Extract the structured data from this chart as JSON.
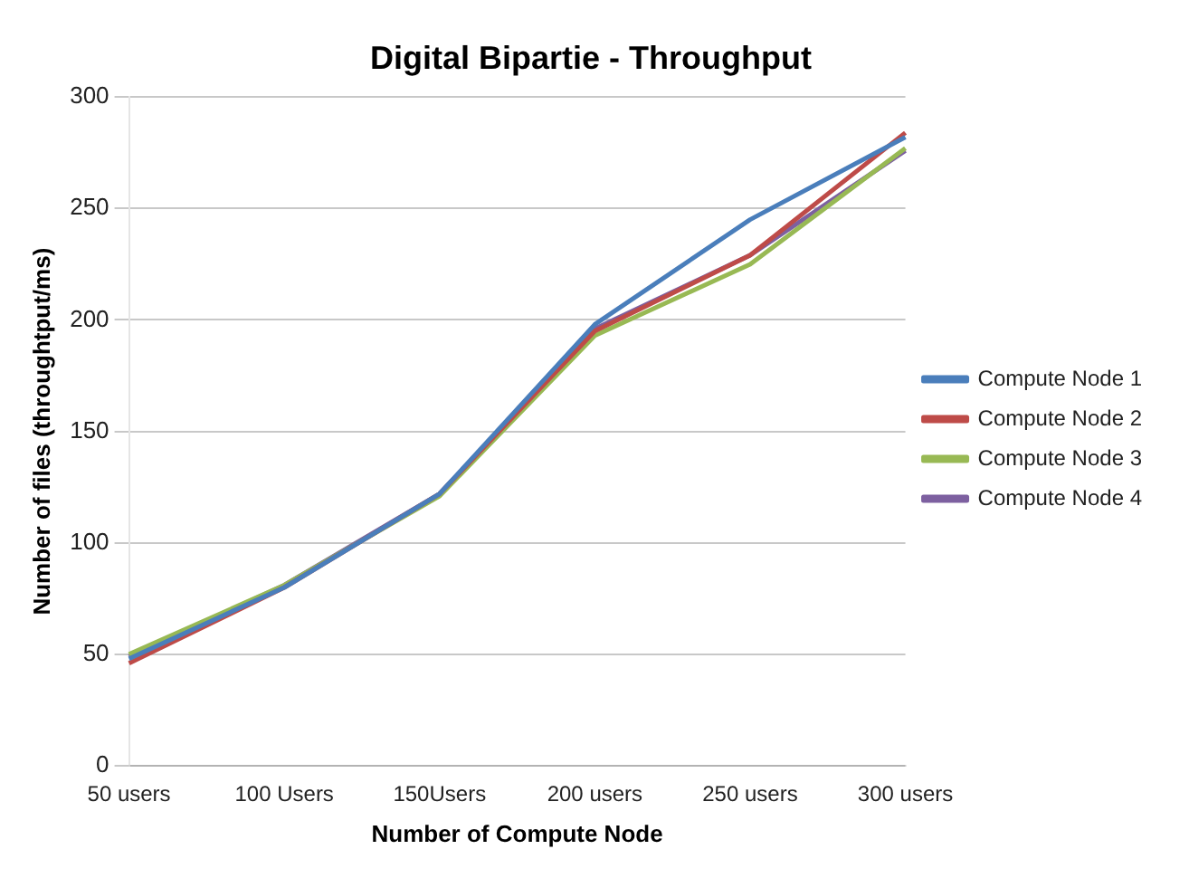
{
  "chart_data": {
    "type": "line",
    "title": "Digital Bipartie - Throughput",
    "xlabel": "Number of Compute Node",
    "ylabel": "Number of files (throughtput/ms)",
    "categories": [
      "50 users",
      "100 Users",
      "150Users",
      "200 users",
      "250 users",
      "300 users"
    ],
    "series": [
      {
        "name": "Compute Node 1",
        "color": "#4a7ebb",
        "values": [
          48,
          80,
          122,
          198,
          245,
          282
        ]
      },
      {
        "name": "Compute Node 2",
        "color": "#be4b48",
        "values": [
          46,
          80,
          122,
          195,
          229,
          284
        ]
      },
      {
        "name": "Compute Node 3",
        "color": "#98b954",
        "values": [
          50,
          81,
          121,
          193,
          225,
          277
        ]
      },
      {
        "name": "Compute Node 4",
        "color": "#7d60a0",
        "values": [
          49,
          81,
          122,
          196,
          229,
          276
        ]
      }
    ],
    "ylim": [
      0,
      300
    ],
    "yticks": [
      0,
      50,
      100,
      150,
      200,
      250,
      300
    ],
    "grid": "y",
    "legend": "right",
    "marker": "none",
    "line_style": "solid"
  }
}
